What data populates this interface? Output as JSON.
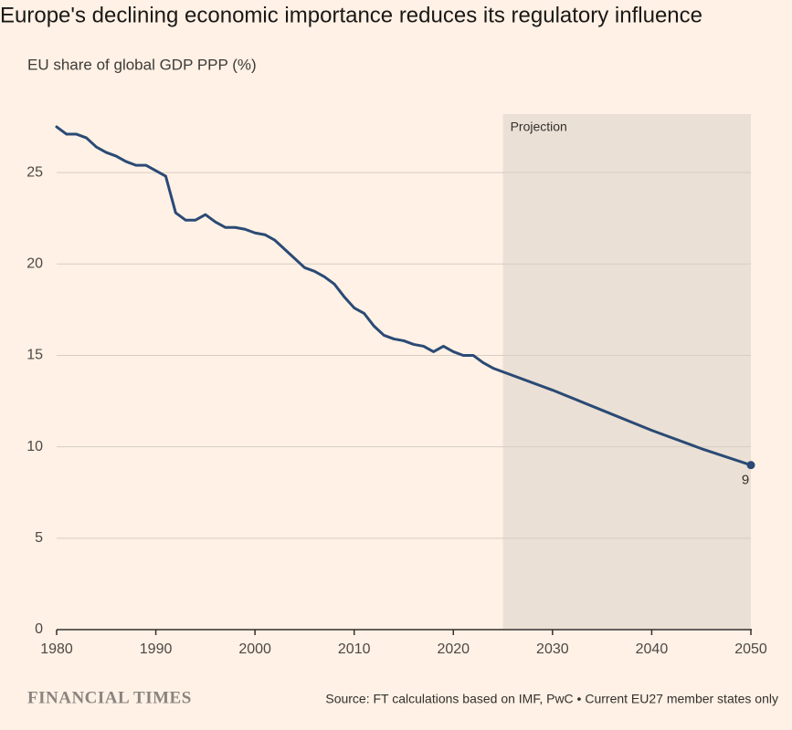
{
  "chart_data": {
    "type": "line",
    "title": "Europe's declining economic importance reduces its regulatory influence",
    "subtitle": "EU share of global GDP PPP (%)",
    "x": [
      1980,
      1981,
      1982,
      1983,
      1984,
      1985,
      1986,
      1987,
      1988,
      1989,
      1990,
      1991,
      1992,
      1993,
      1994,
      1995,
      1996,
      1997,
      1998,
      1999,
      2000,
      2001,
      2002,
      2003,
      2004,
      2005,
      2006,
      2007,
      2008,
      2009,
      2010,
      2011,
      2012,
      2013,
      2014,
      2015,
      2016,
      2017,
      2018,
      2019,
      2020,
      2021,
      2022,
      2023,
      2024,
      2025,
      2030,
      2035,
      2040,
      2045,
      2050
    ],
    "series": [
      {
        "name": "EU share of global GDP PPP",
        "color": "#2a4a75",
        "values": [
          27.5,
          27.1,
          27.1,
          26.9,
          26.4,
          26.1,
          25.9,
          25.6,
          25.4,
          25.4,
          25.1,
          24.8,
          22.8,
          22.4,
          22.4,
          22.7,
          22.3,
          22.0,
          22.0,
          21.9,
          21.7,
          21.6,
          21.3,
          20.8,
          20.3,
          19.8,
          19.6,
          19.3,
          18.9,
          18.2,
          17.6,
          17.3,
          16.6,
          16.1,
          15.9,
          15.8,
          15.6,
          15.5,
          15.2,
          15.5,
          15.2,
          15.0,
          15.0,
          14.6,
          14.3,
          14.1,
          13.1,
          12.0,
          10.9,
          9.9,
          9
        ]
      }
    ],
    "xlim": [
      1980,
      2050
    ],
    "xticks": [
      1980,
      1990,
      2000,
      2010,
      2020,
      2030,
      2040,
      2050
    ],
    "ylim": [
      0,
      28.2
    ],
    "yticks": [
      0,
      5,
      10,
      15,
      20,
      25
    ],
    "grid": true,
    "projection": {
      "label": "Projection",
      "start": 2025,
      "end": 2050
    },
    "brand": "FINANCIAL TIMES",
    "source": "Source: FT calculations based on IMF, PwC • Current EU27 member states only"
  }
}
